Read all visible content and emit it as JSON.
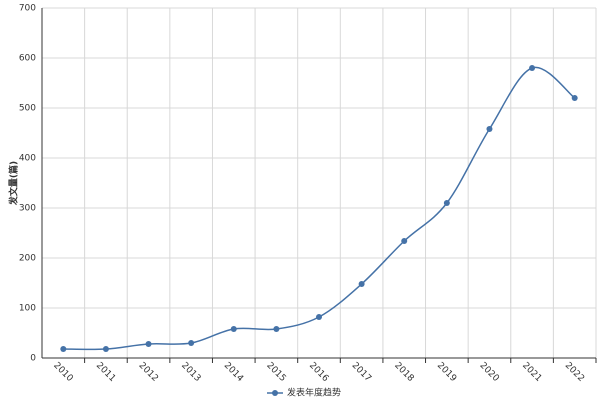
{
  "chart_data": {
    "type": "line",
    "y_label": "发文量(篇)",
    "categories": [
      "2010",
      "2011",
      "2012",
      "2013",
      "2014",
      "2015",
      "2016",
      "2017",
      "2018",
      "2019",
      "2020",
      "2021",
      "2022"
    ],
    "series": [
      {
        "name": "发表年度趋势",
        "color": "#4572a7",
        "values": [
          18,
          18,
          28,
          30,
          58,
          58,
          82,
          148,
          234,
          310,
          458,
          580,
          520
        ]
      }
    ],
    "ylim": [
      0,
      700
    ],
    "yticks": [
      0,
      100,
      200,
      300,
      400,
      500,
      600,
      700
    ],
    "grid": true,
    "smooth": true,
    "legend": "bottom"
  }
}
